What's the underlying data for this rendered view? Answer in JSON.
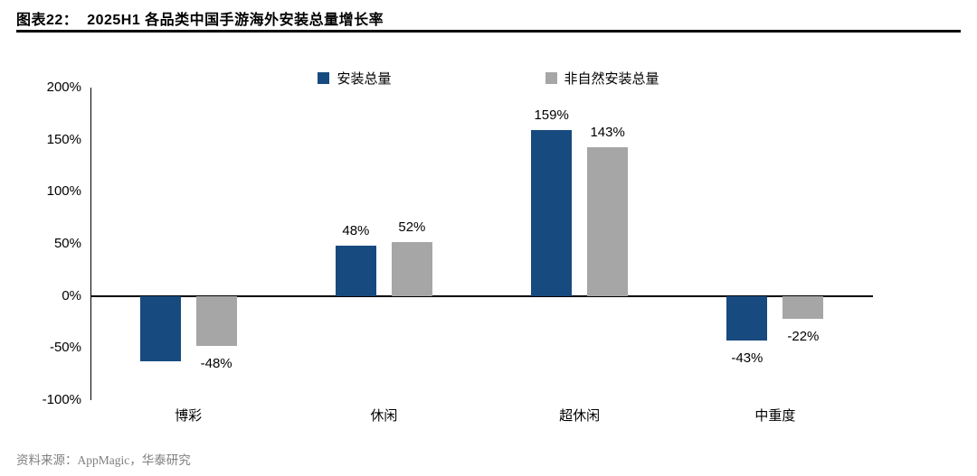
{
  "header": {
    "title": "图表22：  2025H1 各品类中国手游海外安装总量增长率"
  },
  "chart_data": {
    "type": "bar",
    "title": "2025H1 各品类中国手游海外安装总量增长率",
    "categories": [
      "博彩",
      "休闲",
      "超休闲",
      "中重度"
    ],
    "series": [
      {
        "name": "安装总量",
        "color": "#174a7e",
        "values": [
          -63,
          48,
          159,
          -43
        ],
        "labels": [
          "",
          "48%",
          "159%",
          "-43%"
        ]
      },
      {
        "name": "非自然安装总量",
        "color": "#a6a6a6",
        "values": [
          -48,
          52,
          143,
          -22
        ],
        "labels": [
          "-48%",
          "52%",
          "143%",
          "-22%"
        ]
      }
    ],
    "ylim": [
      -100,
      200
    ],
    "yticks": [
      "200%",
      "150%",
      "100%",
      "50%",
      "0%",
      "-50%",
      "-100%"
    ],
    "ytick_values": [
      200,
      150,
      100,
      50,
      0,
      -50,
      -100
    ],
    "legend_position": "top",
    "grid": false
  },
  "footer": {
    "source": "资料来源：AppMagic，华泰研究"
  }
}
